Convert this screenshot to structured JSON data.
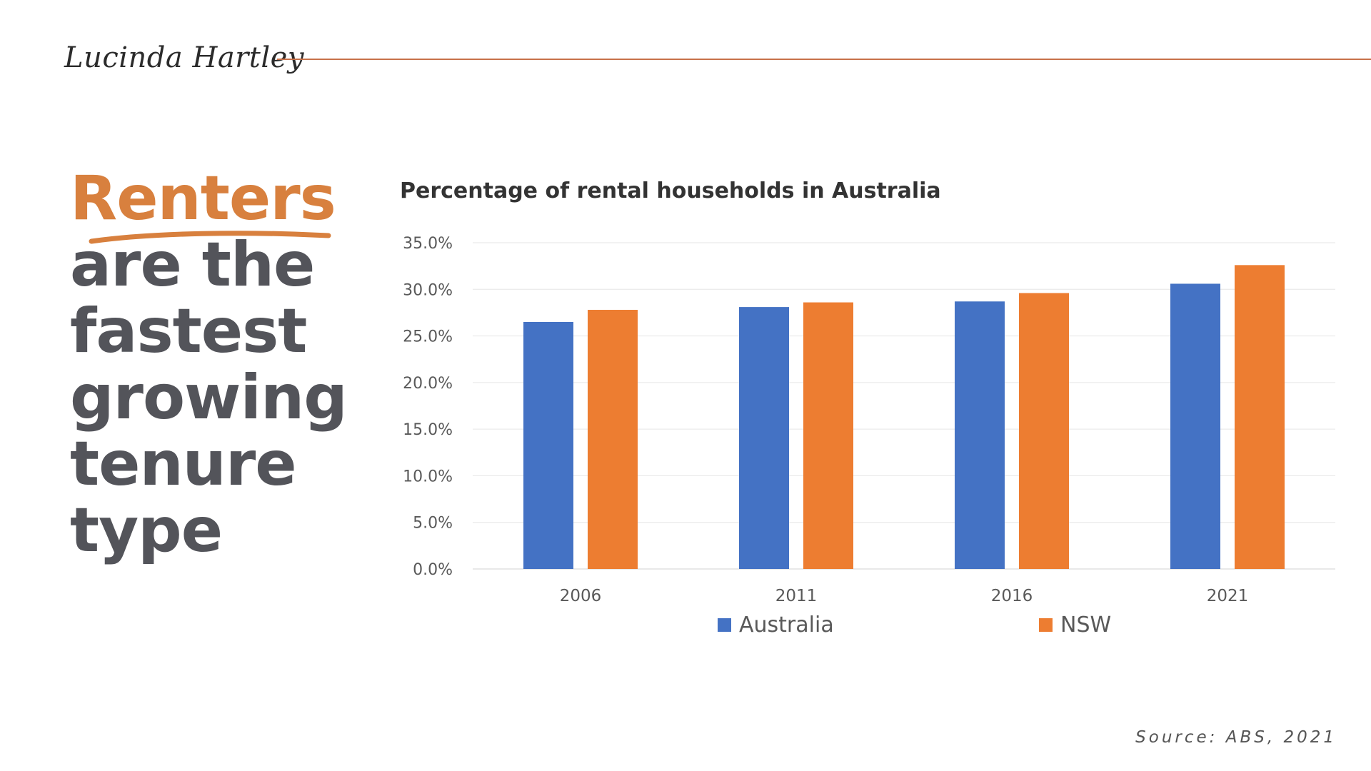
{
  "brand": {
    "name": "Lucinda Hartley"
  },
  "headline": {
    "accent_word": "Renters",
    "lines": [
      "are the",
      "fastest",
      "growing",
      "tenure",
      "type"
    ]
  },
  "source_text": "Source: ABS, 2021",
  "colors": {
    "accent": "#d8803e",
    "rule": "#c8714a",
    "text": "#53545a"
  },
  "chart_data": {
    "type": "bar",
    "title": "Percentage of rental households in Australia",
    "categories": [
      "2006",
      "2011",
      "2016",
      "2021"
    ],
    "series": [
      {
        "name": "Australia",
        "color": "#4472c4",
        "values": [
          26.5,
          28.1,
          28.7,
          30.6
        ]
      },
      {
        "name": "NSW",
        "color": "#ed7d31",
        "values": [
          27.8,
          28.6,
          29.6,
          32.6
        ]
      }
    ],
    "ylim": [
      0,
      35
    ],
    "yticks": [
      "0.0%",
      "5.0%",
      "10.0%",
      "15.0%",
      "20.0%",
      "25.0%",
      "30.0%",
      "35.0%"
    ],
    "grid": true,
    "legend_position": "bottom"
  }
}
